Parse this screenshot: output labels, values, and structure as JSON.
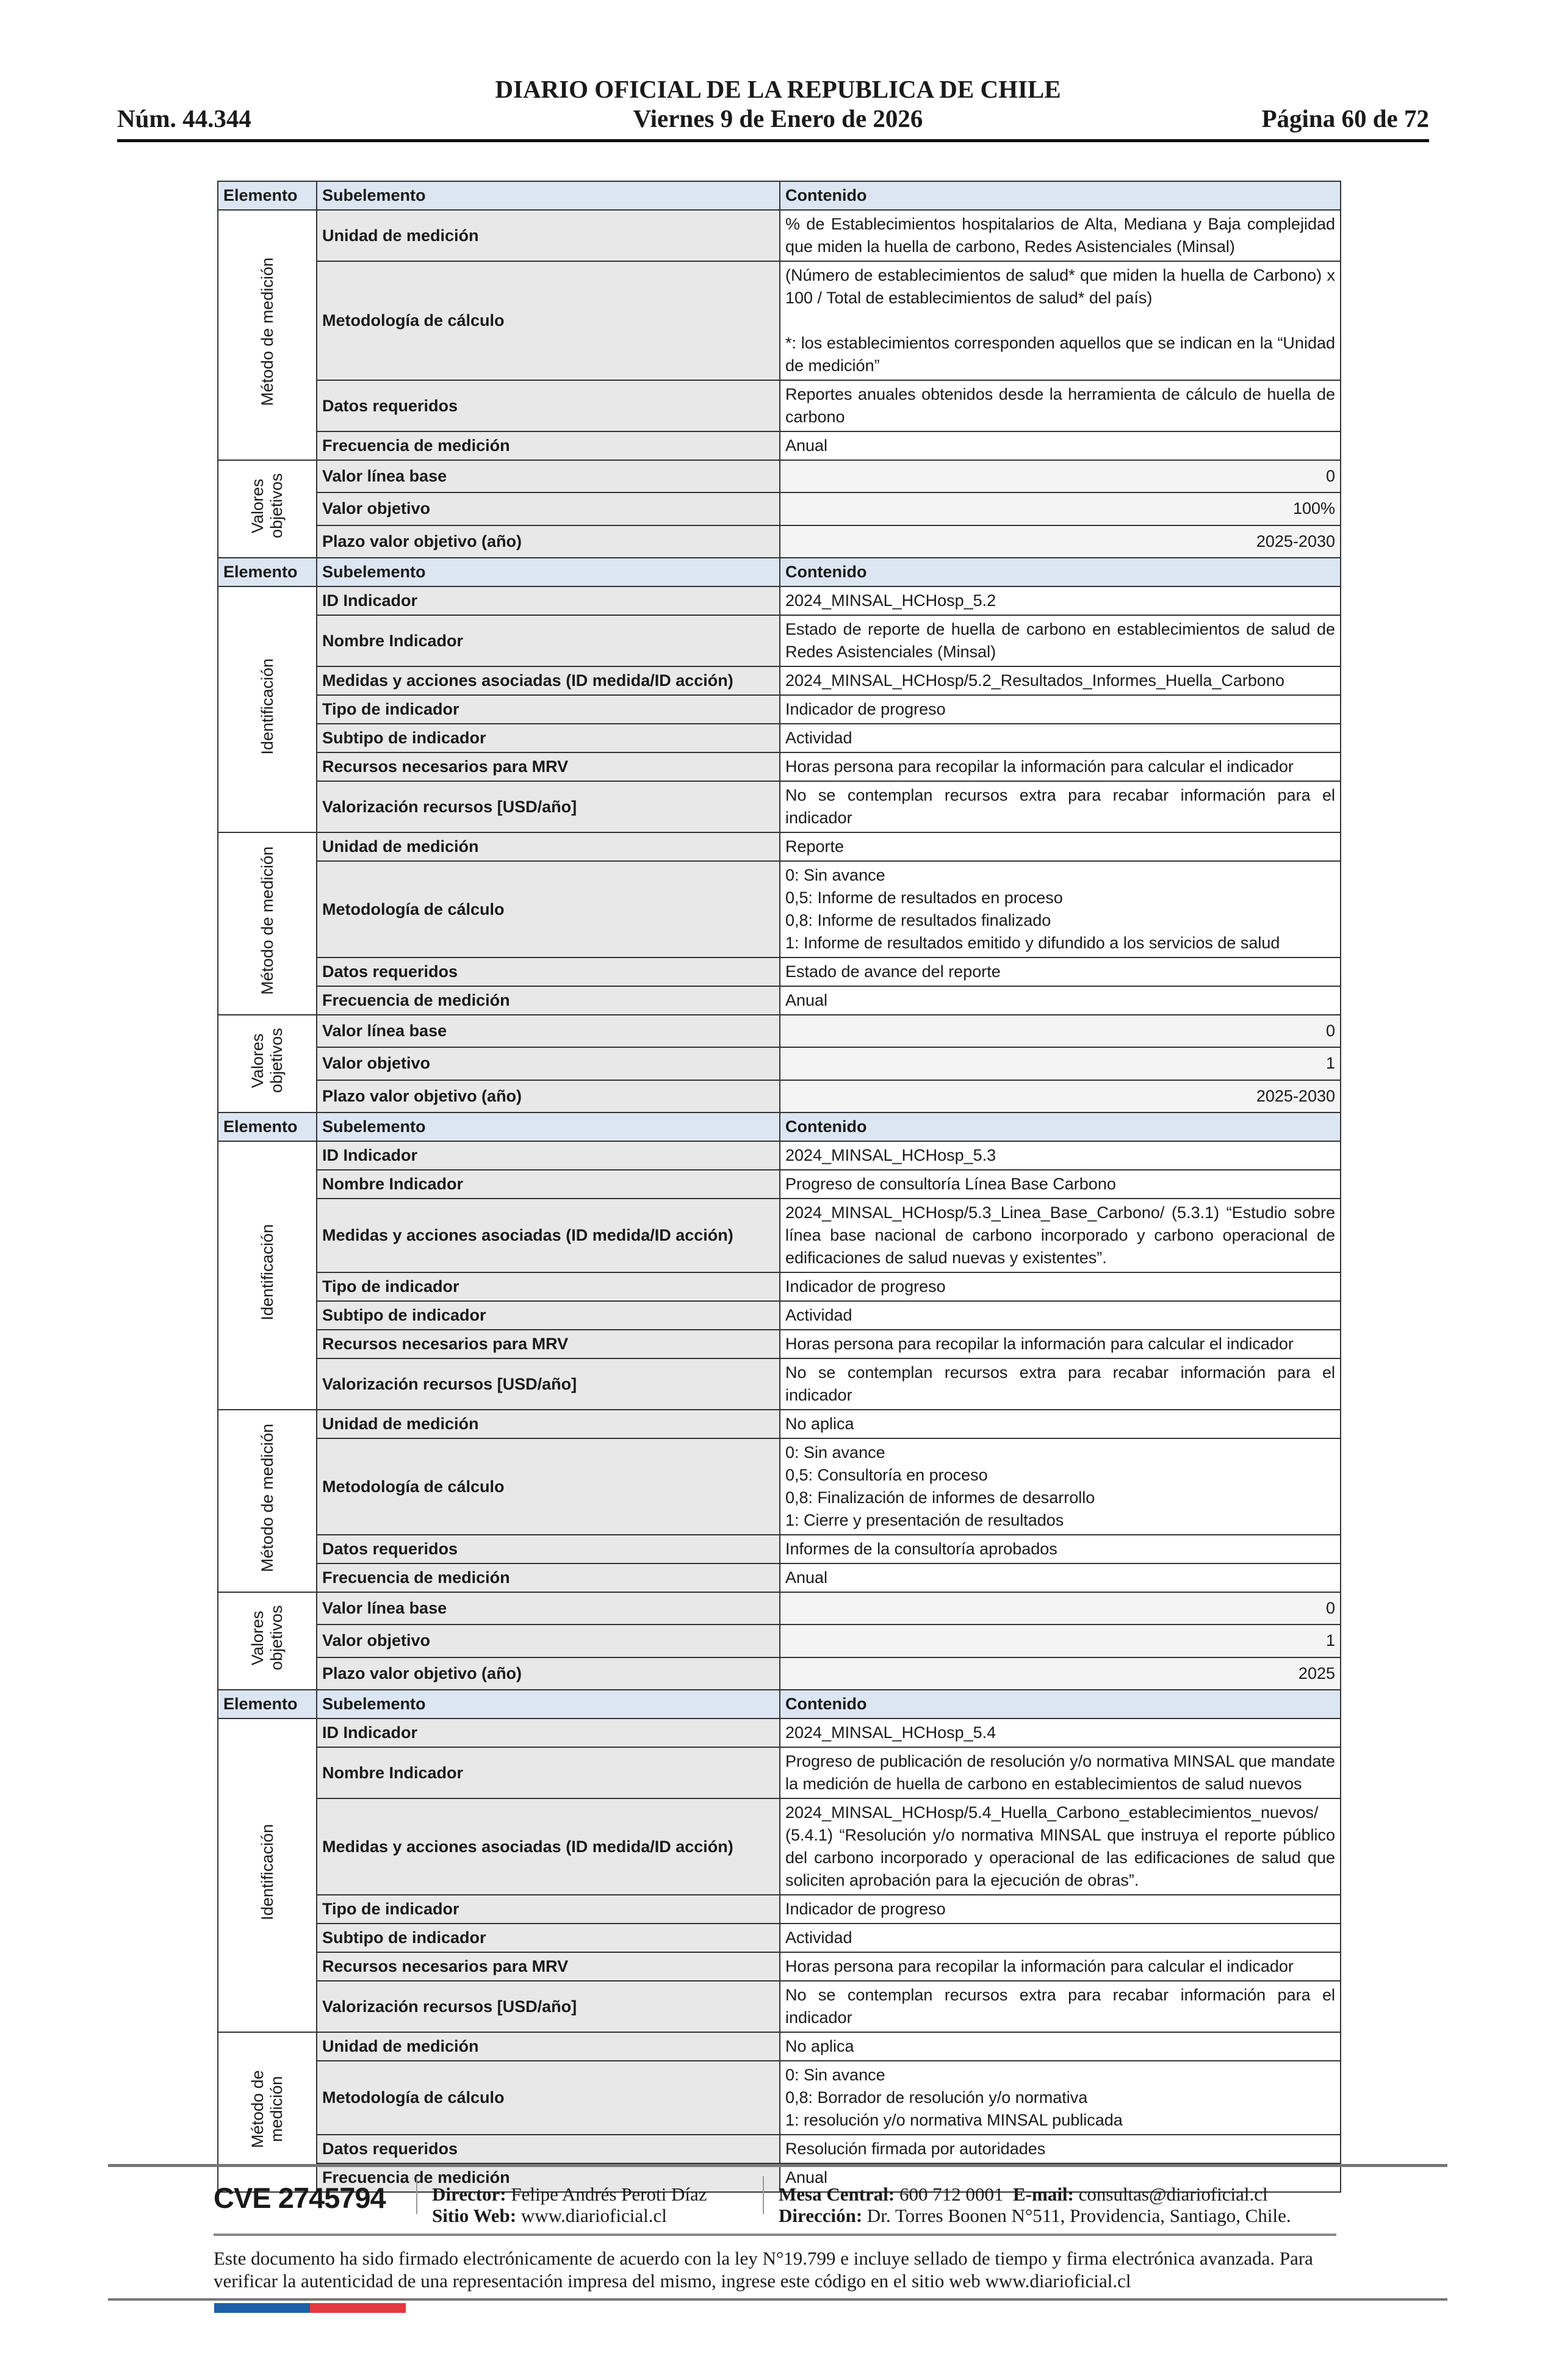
{
  "header": {
    "title": "DIARIO OFICIAL DE LA REPUBLICA DE CHILE",
    "number": "Núm. 44.344",
    "date": "Viernes 9 de Enero de 2026",
    "page": "Página 60 de 72"
  },
  "table": {
    "col_headers": [
      "Elemento",
      "Subelemento",
      "Contenido"
    ],
    "blocks": [
      {
        "groups": [
          {
            "element": "Método de medición",
            "rows": [
              {
                "sub": "Unidad de medición",
                "content": [
                  "% de Establecimientos hospitalarios de Alta, Mediana y Baja complejidad que miden la huella de carbono, Redes Asistenciales (Minsal)"
                ],
                "align": "j"
              },
              {
                "sub": "Metodología de cálculo",
                "content": [
                  "(Número de establecimientos de salud* que miden la huella de Carbono) x 100 / Total de establecimientos de salud* del país)",
                  "",
                  "*: los establecimientos corresponden aquellos que se indican en la “Unidad de medición”"
                ],
                "align": "j"
              },
              {
                "sub": "Datos requeridos",
                "content": [
                  "Reportes anuales obtenidos desde la herramienta de cálculo de huella de carbono"
                ],
                "align": "j"
              },
              {
                "sub": "Frecuencia de medición",
                "content": [
                  "Anual"
                ],
                "align": "l"
              }
            ]
          },
          {
            "element": "Valores objetivos",
            "rows": [
              {
                "sub": "Valor línea base",
                "content": [
                  "0"
                ],
                "align": "r"
              },
              {
                "sub": "Valor objetivo",
                "content": [
                  "100%"
                ],
                "align": "r"
              },
              {
                "sub": "Plazo valor objetivo (año)",
                "content": [
                  "2025-2030"
                ],
                "align": "r"
              }
            ]
          }
        ]
      },
      {
        "header": true,
        "groups": [
          {
            "element": "Identificación",
            "rows": [
              {
                "sub": "ID Indicador",
                "content": [
                  "2024_MINSAL_HCHosp_5.2"
                ],
                "align": "l"
              },
              {
                "sub": "Nombre Indicador",
                "content": [
                  "Estado de reporte de huella de carbono en establecimientos de salud de Redes Asistenciales (Minsal)"
                ],
                "align": "j"
              },
              {
                "sub": "Medidas y acciones asociadas (ID medida/ID acción)",
                "content": [
                  "2024_MINSAL_HCHosp/5.2_Resultados_Informes_Huella_Carbono"
                ],
                "align": "l"
              },
              {
                "sub": "Tipo de indicador",
                "content": [
                  "Indicador de progreso"
                ],
                "align": "l"
              },
              {
                "sub": "Subtipo de indicador",
                "content": [
                  "Actividad"
                ],
                "align": "l"
              },
              {
                "sub": "Recursos necesarios para MRV",
                "content": [
                  "Horas persona para recopilar la información para calcular el indicador"
                ],
                "align": "l"
              },
              {
                "sub": "Valorización recursos [USD/año]",
                "content": [
                  "No se contemplan recursos extra para recabar información para el indicador"
                ],
                "align": "j"
              }
            ]
          },
          {
            "element": "Método de medición",
            "rows": [
              {
                "sub": "Unidad de medición",
                "content": [
                  "Reporte"
                ],
                "align": "l"
              },
              {
                "sub": "Metodología de cálculo",
                "content": [
                  "0: Sin avance",
                  "0,5: Informe de resultados en proceso",
                  "0,8: Informe de resultados finalizado",
                  "1: Informe de resultados emitido y difundido a los servicios de salud"
                ],
                "align": "l"
              },
              {
                "sub": "Datos requeridos",
                "content": [
                  "Estado de avance del reporte"
                ],
                "align": "l"
              },
              {
                "sub": "Frecuencia de medición",
                "content": [
                  "Anual"
                ],
                "align": "l"
              }
            ]
          },
          {
            "element": "Valores objetivos",
            "rows": [
              {
                "sub": "Valor línea base",
                "content": [
                  "0"
                ],
                "align": "r"
              },
              {
                "sub": "Valor objetivo",
                "content": [
                  "1"
                ],
                "align": "r"
              },
              {
                "sub": "Plazo valor objetivo (año)",
                "content": [
                  "2025-2030"
                ],
                "align": "r"
              }
            ]
          }
        ]
      },
      {
        "header": true,
        "groups": [
          {
            "element": "Identificación",
            "rows": [
              {
                "sub": "ID Indicador",
                "content": [
                  "2024_MINSAL_HCHosp_5.3"
                ],
                "align": "l"
              },
              {
                "sub": "Nombre Indicador",
                "content": [
                  "Progreso de consultoría Línea Base Carbono"
                ],
                "align": "l"
              },
              {
                "sub": "Medidas y acciones asociadas (ID medida/ID acción)",
                "content": [
                  "2024_MINSAL_HCHosp/5.3_Linea_Base_Carbono/ (5.3.1) “Estudio sobre línea base nacional de carbono incorporado y carbono operacional de edificaciones de salud nuevas y existentes”."
                ],
                "align": "j"
              },
              {
                "sub": "Tipo de indicador",
                "content": [
                  "Indicador de progreso"
                ],
                "align": "l"
              },
              {
                "sub": "Subtipo de indicador",
                "content": [
                  "Actividad"
                ],
                "align": "l"
              },
              {
                "sub": "Recursos necesarios para MRV",
                "content": [
                  "Horas persona para recopilar la información para calcular el indicador"
                ],
                "align": "l"
              },
              {
                "sub": "Valorización recursos [USD/año]",
                "content": [
                  "No se contemplan recursos extra para recabar información para el indicador"
                ],
                "align": "j"
              }
            ]
          },
          {
            "element": "Método de medición",
            "rows": [
              {
                "sub": "Unidad de medición",
                "content": [
                  "No aplica"
                ],
                "align": "l"
              },
              {
                "sub": "Metodología de cálculo",
                "content": [
                  "0: Sin avance",
                  "0,5: Consultoría en proceso",
                  "0,8: Finalización de informes de desarrollo",
                  "1: Cierre y presentación de resultados"
                ],
                "align": "l"
              },
              {
                "sub": "Datos requeridos",
                "content": [
                  "Informes de la consultoría aprobados"
                ],
                "align": "l"
              },
              {
                "sub": "Frecuencia de medición",
                "content": [
                  "Anual"
                ],
                "align": "l"
              }
            ]
          },
          {
            "element": "Valores objetivos",
            "rows": [
              {
                "sub": "Valor línea base",
                "content": [
                  "0"
                ],
                "align": "r"
              },
              {
                "sub": "Valor objetivo",
                "content": [
                  "1"
                ],
                "align": "r"
              },
              {
                "sub": "Plazo valor objetivo (año)",
                "content": [
                  "2025"
                ],
                "align": "r"
              }
            ]
          }
        ]
      },
      {
        "header": true,
        "groups": [
          {
            "element": "Identificación",
            "rows": [
              {
                "sub": "ID Indicador",
                "content": [
                  "2024_MINSAL_HCHosp_5.4"
                ],
                "align": "l"
              },
              {
                "sub": "Nombre Indicador",
                "content": [
                  "Progreso de publicación de resolución y/o normativa MINSAL que mandate la medición de huella de carbono en establecimientos de salud nuevos"
                ],
                "align": "j"
              },
              {
                "sub": "Medidas y acciones asociadas (ID medida/ID acción)",
                "content": [
                  "2024_MINSAL_HCHosp/5.4_Huella_Carbono_establecimientos_nuevos/ (5.4.1) “Resolución y/o normativa MINSAL que instruya el reporte público del carbono incorporado y operacional de las edificaciones de salud que soliciten aprobación para la ejecución de obras”."
                ],
                "align": "j"
              },
              {
                "sub": "Tipo de indicador",
                "content": [
                  "Indicador de progreso"
                ],
                "align": "l"
              },
              {
                "sub": "Subtipo de indicador",
                "content": [
                  "Actividad"
                ],
                "align": "l"
              },
              {
                "sub": "Recursos necesarios para MRV",
                "content": [
                  "Horas persona para recopilar la información para calcular el indicador"
                ],
                "align": "l"
              },
              {
                "sub": "Valorización recursos [USD/año]",
                "content": [
                  "No se contemplan recursos extra para recabar información para el indicador"
                ],
                "align": "j"
              }
            ]
          },
          {
            "element": "Método de medición",
            "rows": [
              {
                "sub": "Unidad de medición",
                "content": [
                  "No aplica"
                ],
                "align": "l"
              },
              {
                "sub": "Metodología de cálculo",
                "content": [
                  "0: Sin avance",
                  "0,8: Borrador de resolución y/o normativa",
                  "1: resolución y/o normativa MINSAL publicada"
                ],
                "align": "l"
              },
              {
                "sub": "Datos requeridos",
                "content": [
                  "Resolución firmada por autoridades"
                ],
                "align": "l"
              },
              {
                "sub": "Frecuencia de medición",
                "content": [
                  "Anual"
                ],
                "align": "l"
              }
            ]
          }
        ]
      }
    ]
  },
  "footer": {
    "cve": "CVE 2745794",
    "director_label": "Director:",
    "director": "Felipe Andrés Peroti Díaz",
    "site_label": "Sitio Web:",
    "site": "www.diarioficial.cl",
    "phone_label": "Mesa Central:",
    "phone": "600 712 0001",
    "email_label": "E-mail:",
    "email": "consultas@diarioficial.cl",
    "address_label": "Dirección:",
    "address": "Dr. Torres Boonen N°511, Providencia, Santiago, Chile.",
    "legal": "Este documento ha sido firmado electrónicamente de acuerdo con la ley N°19.799 e incluye sellado de tiempo y firma electrónica avanzada. Para verificar la autenticidad de una representación impresa del mismo, ingrese este código en el sitio web www.diarioficial.cl",
    "flag_colors": [
      "#1f5fa8",
      "#e3393f"
    ]
  }
}
